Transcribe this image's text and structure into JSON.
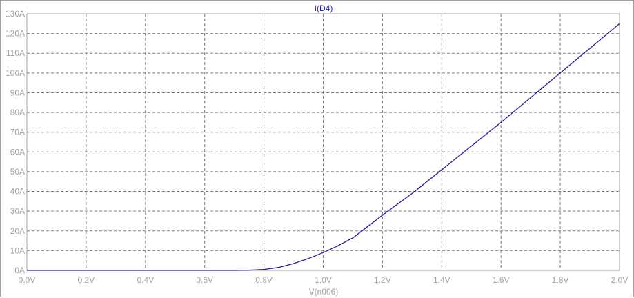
{
  "chart_data": {
    "type": "line",
    "title": "I(D4)",
    "xlabel": "V(n006)",
    "ylabel": "",
    "xlim": [
      0,
      2.0
    ],
    "ylim": [
      0,
      130
    ],
    "grid": true,
    "x_ticks": [
      "0.0V",
      "0.2V",
      "0.4V",
      "0.6V",
      "0.8V",
      "1.0V",
      "1.2V",
      "1.4V",
      "1.6V",
      "1.8V",
      "2.0V"
    ],
    "y_ticks": [
      "0A",
      "10A",
      "20A",
      "30A",
      "40A",
      "50A",
      "60A",
      "70A",
      "80A",
      "90A",
      "100A",
      "110A",
      "120A",
      "130A"
    ],
    "series": [
      {
        "color": "#1a1aa8",
        "x": [
          0,
          0.2,
          0.4,
          0.6,
          0.7,
          0.75,
          0.8,
          0.85,
          0.9,
          0.95,
          1.0,
          1.05,
          1.1,
          1.2,
          1.3,
          1.4,
          1.5,
          1.6,
          1.7,
          1.8,
          1.9,
          2.0
        ],
        "y": [
          0,
          0,
          0,
          0,
          0,
          0.1,
          0.5,
          1.5,
          3.5,
          6.0,
          9.0,
          12.5,
          16.5,
          28.0,
          39.0,
          51.0,
          63.0,
          75.0,
          87.5,
          100.0,
          112.5,
          125.0
        ]
      }
    ]
  }
}
